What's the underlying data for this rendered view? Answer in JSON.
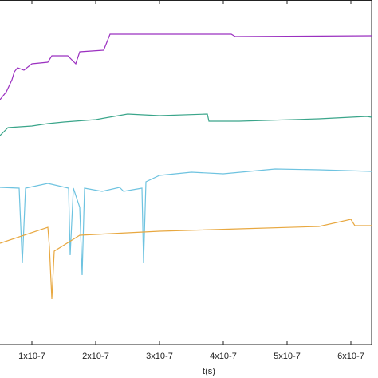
{
  "chart_data": {
    "type": "line",
    "x_label": "t(s)",
    "xlim": [
      5e-08,
      6.325e-07
    ],
    "ylim": [
      0,
      432
    ],
    "xticks": [
      {
        "value": 1e-07,
        "label": "1x10-7"
      },
      {
        "value": 2e-07,
        "label": "2x10-7"
      },
      {
        "value": 3e-07,
        "label": "3x10-7"
      },
      {
        "value": 4e-07,
        "label": "4x10-7"
      },
      {
        "value": 5e-07,
        "label": "5x10-7"
      },
      {
        "value": 6e-07,
        "label": "6x10-7"
      }
    ],
    "series": [
      {
        "color": "#9b30c0",
        "x": [
          5e-08,
          6e-08,
          6.875e-08,
          7.25e-08,
          7.75e-08,
          8.75e-08,
          1e-07,
          1.25e-07,
          1.3125e-07,
          1.5625e-07,
          1.6875e-07,
          1.75e-07,
          2.125e-07,
          2.225e-07,
          4.125e-07,
          4.1875e-07,
          6.325e-07
        ],
        "values": [
          307,
          317,
          332,
          342,
          347,
          344,
          352,
          354,
          362,
          362,
          352,
          367,
          369,
          389,
          389,
          386,
          387
        ]
      },
      {
        "color": "#3aa58a",
        "x": [
          5e-08,
          6.25e-08,
          1e-07,
          1.25e-07,
          1.5e-07,
          2e-07,
          2.5e-07,
          3e-07,
          3.75e-07,
          3.775e-07,
          4.25e-07,
          5.5e-07,
          6.25e-07,
          6.325e-07
        ],
        "values": [
          262,
          272,
          274,
          277,
          279,
          282,
          289,
          287,
          289,
          280,
          280,
          283,
          286,
          285
        ]
      },
      {
        "color": "#6ec3e0",
        "x": [
          5e-08,
          8e-08,
          8.5e-08,
          9e-08,
          1.25e-07,
          1.575e-07,
          1.6e-07,
          1.65e-07,
          1.75e-07,
          1.7875e-07,
          1.825e-07,
          2.1e-07,
          2.375e-07,
          2.4375e-07,
          2.725e-07,
          2.75e-07,
          2.7875e-07,
          3e-07,
          3.5e-07,
          4e-07,
          4.8125e-07,
          5.5e-07,
          6.325e-07
        ],
        "values": [
          197,
          196,
          102,
          196,
          202,
          196,
          112,
          196,
          172,
          87,
          196,
          192,
          197,
          192,
          196,
          102,
          204,
          212,
          216,
          214,
          220,
          219,
          217
        ]
      },
      {
        "color": "#e8a840",
        "x": [
          5e-08,
          1.25e-07,
          1.275e-07,
          1.3125e-07,
          1.35e-07,
          1.75e-07,
          3e-07,
          4.25e-07,
          5.5e-07,
          6e-07,
          6.0625e-07,
          6.325e-07
        ],
        "values": [
          127,
          147,
          122,
          57,
          117,
          137,
          142,
          145,
          148,
          157,
          149,
          149
        ]
      }
    ]
  }
}
